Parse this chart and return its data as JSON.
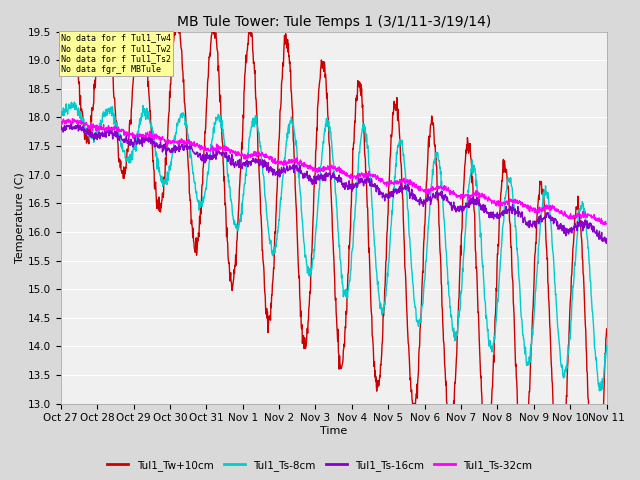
{
  "title": "MB Tule Tower: Tule Temps 1 (3/1/11-3/19/14)",
  "xlabel": "Time",
  "ylabel": "Temperature (C)",
  "ylim": [
    13.0,
    19.5
  ],
  "yticks": [
    13.0,
    13.5,
    14.0,
    14.5,
    15.0,
    15.5,
    16.0,
    16.5,
    17.0,
    17.5,
    18.0,
    18.5,
    19.0,
    19.5
  ],
  "xtick_labels": [
    "Oct 27",
    "Oct 28",
    "Oct 29",
    "Oct 30",
    "Oct 31",
    "Nov 1",
    "Nov 2",
    "Nov 3",
    "Nov 4",
    "Nov 5",
    "Nov 6",
    "Nov 7",
    "Nov 8",
    "Nov 9",
    "Nov 10",
    "Nov 11"
  ],
  "series_names": [
    "Tul1_Tw+10cm",
    "Tul1_Ts-8cm",
    "Tul1_Ts-16cm",
    "Tul1_Ts-32cm"
  ],
  "series_colors": [
    "#cc0000",
    "#00cccc",
    "#8800cc",
    "#ff00ff"
  ],
  "series_linewidths": [
    1.0,
    1.0,
    1.0,
    1.0
  ],
  "no_data_labels": [
    "No data for f Tul1_Tw4",
    "No data for f Tul1_Tw2",
    "No data for f Tul1_Ts2",
    "No data fgr_f MBTule"
  ],
  "no_data_box_color": "#ffff99",
  "background_color": "#d9d9d9",
  "plot_bg_color": "#f0f0f0",
  "grid_color": "#ffffff",
  "title_fontsize": 10,
  "axis_fontsize": 8,
  "tick_fontsize": 7.5
}
